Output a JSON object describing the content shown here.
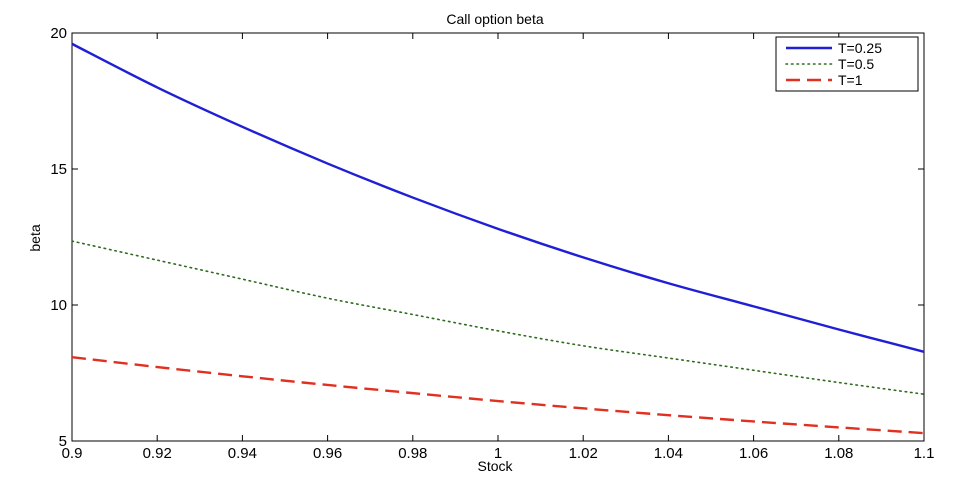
{
  "chart_data": {
    "type": "line",
    "title": "Call option beta",
    "xlabel": "Stock",
    "ylabel": "beta",
    "xlim": [
      0.9,
      1.1
    ],
    "ylim": [
      5,
      20
    ],
    "xticks": [
      "0.9",
      "0.92",
      "0.94",
      "0.96",
      "0.98",
      "1",
      "1.02",
      "1.04",
      "1.06",
      "1.08",
      "1.1"
    ],
    "yticks": [
      "5",
      "10",
      "15",
      "20"
    ],
    "grid": false,
    "legend_position": "top-right",
    "x": [
      0.9,
      0.92,
      0.94,
      0.96,
      0.98,
      1.0,
      1.02,
      1.04,
      1.06,
      1.08,
      1.1
    ],
    "series": [
      {
        "name": "T=0.25",
        "color": "#1f1fd6",
        "style": "solid",
        "values": [
          19.6,
          18.0,
          16.55,
          15.2,
          13.95,
          12.8,
          11.75,
          10.8,
          9.95,
          9.1,
          8.28
        ]
      },
      {
        "name": "T=0.5",
        "color": "#2f6b1f",
        "style": "dotted",
        "values": [
          12.35,
          11.65,
          10.95,
          10.25,
          9.65,
          9.05,
          8.5,
          8.05,
          7.6,
          7.15,
          6.72
        ]
      },
      {
        "name": "T=1",
        "color": "#e03020",
        "style": "dashed",
        "values": [
          8.08,
          7.72,
          7.38,
          7.06,
          6.76,
          6.47,
          6.2,
          5.95,
          5.72,
          5.5,
          5.29
        ]
      }
    ]
  }
}
